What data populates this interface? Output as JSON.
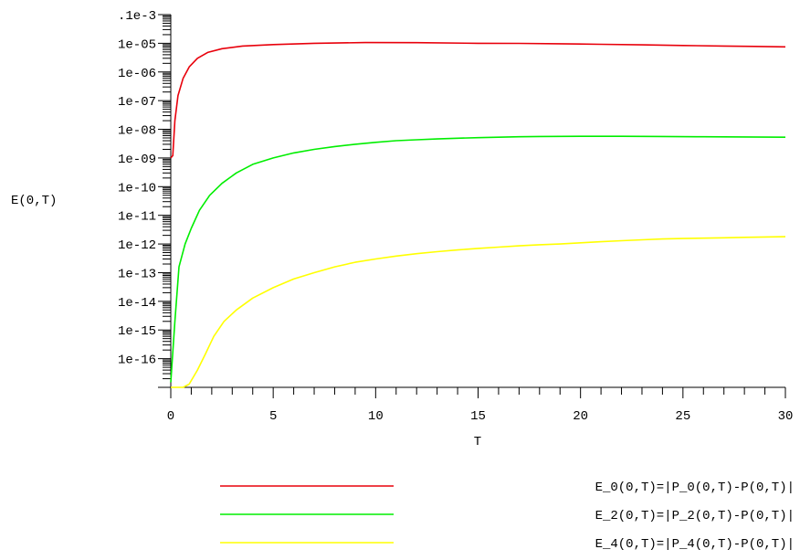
{
  "chart_data": {
    "type": "line",
    "title": "",
    "xlabel": "T",
    "ylabel": "E(0,T)",
    "xlim": [
      0,
      30
    ],
    "ylim_log10": [
      -16,
      -3
    ],
    "yscale": "log",
    "grid": false,
    "legend_position": "bottom-right",
    "x_ticks": [
      "0",
      "5",
      "10",
      "15",
      "20",
      "25",
      "30"
    ],
    "y_ticks": [
      ".1e-3",
      "1e-05",
      "1e-06",
      "1e-07",
      "1e-08",
      "1e-09",
      "1e-10",
      "1e-11",
      "1e-12",
      "1e-13",
      "1e-14",
      "1e-15",
      "1e-16"
    ],
    "series": [
      {
        "name": "E_0(0,T)=|P_0(0,T)-P(0,T)|",
        "color": "#e8000b",
        "points": [
          [
            0,
            1e-08
          ],
          [
            0.1,
            1.2e-08
          ],
          [
            0.2,
            2e-07
          ],
          [
            0.35,
            1.5e-06
          ],
          [
            0.6,
            6e-06
          ],
          [
            0.9,
            1.5e-05
          ],
          [
            1.3,
            3e-05
          ],
          [
            1.8,
            4.8e-05
          ],
          [
            2.5,
            6.5e-05
          ],
          [
            3.5,
            8e-05
          ],
          [
            5,
            9e-05
          ],
          [
            7,
            0.0001
          ],
          [
            9.5,
            0.000106
          ],
          [
            12,
            0.000105
          ],
          [
            15,
            0.0001
          ],
          [
            17,
            9.9e-05
          ],
          [
            19,
            9.6e-05
          ],
          [
            21,
            9.2e-05
          ],
          [
            23,
            8.8e-05
          ],
          [
            25,
            8.4e-05
          ],
          [
            27,
            8e-05
          ],
          [
            28.5,
            7.8e-05
          ],
          [
            30,
            7.5e-05
          ]
        ]
      },
      {
        "name": "E_2(0,T)=|P_2(0,T)-P(0,T)|",
        "color": "#00ee00",
        "points": [
          [
            0,
            1.5e-16
          ],
          [
            0.2,
            2e-14
          ],
          [
            0.4,
            1.6e-12
          ],
          [
            0.7,
            1e-11
          ],
          [
            1.0,
            3.5e-11
          ],
          [
            1.4,
            1.5e-10
          ],
          [
            1.9,
            5e-10
          ],
          [
            2.5,
            1.3e-09
          ],
          [
            3.2,
            3e-09
          ],
          [
            4,
            6e-09
          ],
          [
            5,
            1e-08
          ],
          [
            6,
            1.5e-08
          ],
          [
            7,
            2e-08
          ],
          [
            8,
            2.5e-08
          ],
          [
            9,
            3e-08
          ],
          [
            10,
            3.5e-08
          ],
          [
            11,
            4e-08
          ],
          [
            12,
            4.3e-08
          ],
          [
            13,
            4.6e-08
          ],
          [
            14,
            4.9e-08
          ],
          [
            15,
            5.1e-08
          ],
          [
            16,
            5.3e-08
          ],
          [
            17,
            5.5e-08
          ],
          [
            18,
            5.6e-08
          ],
          [
            20,
            5.7e-08
          ],
          [
            22,
            5.7e-08
          ],
          [
            24,
            5.6e-08
          ],
          [
            26,
            5.5e-08
          ],
          [
            28,
            5.4e-08
          ],
          [
            30,
            5.3e-08
          ]
        ]
      },
      {
        "name": "E_4(0,T)=|P_4(0,T)-P(0,T)|",
        "color": "#ffff00",
        "points": [
          [
            0,
            1e-16
          ],
          [
            0.2,
            1e-16
          ],
          [
            0.6,
            1e-16
          ],
          [
            0.9,
            1.3e-16
          ],
          [
            1.3,
            4e-16
          ],
          [
            1.7,
            1.5e-15
          ],
          [
            2.1,
            6e-15
          ],
          [
            2.6,
            2e-14
          ],
          [
            3.2,
            5e-14
          ],
          [
            4,
            1.3e-13
          ],
          [
            5,
            3e-13
          ],
          [
            6,
            6e-13
          ],
          [
            7,
            1e-12
          ],
          [
            8,
            1.6e-12
          ],
          [
            9,
            2.3e-12
          ],
          [
            10,
            3e-12
          ],
          [
            11,
            3.8e-12
          ],
          [
            12,
            4.6e-12
          ],
          [
            13,
            5.4e-12
          ],
          [
            14,
            6.2e-12
          ],
          [
            15,
            7e-12
          ],
          [
            16,
            7.8e-12
          ],
          [
            17,
            8.6e-12
          ],
          [
            18,
            9.4e-12
          ],
          [
            19,
            1e-11
          ],
          [
            20,
            1.1e-11
          ],
          [
            21,
            1.2e-11
          ],
          [
            22,
            1.3e-11
          ],
          [
            23,
            1.4e-11
          ],
          [
            24,
            1.5e-11
          ],
          [
            25,
            1.55e-11
          ],
          [
            26,
            1.6e-11
          ],
          [
            27,
            1.65e-11
          ],
          [
            28,
            1.7e-11
          ],
          [
            29,
            1.75e-11
          ],
          [
            30,
            1.8e-11
          ]
        ]
      }
    ]
  }
}
